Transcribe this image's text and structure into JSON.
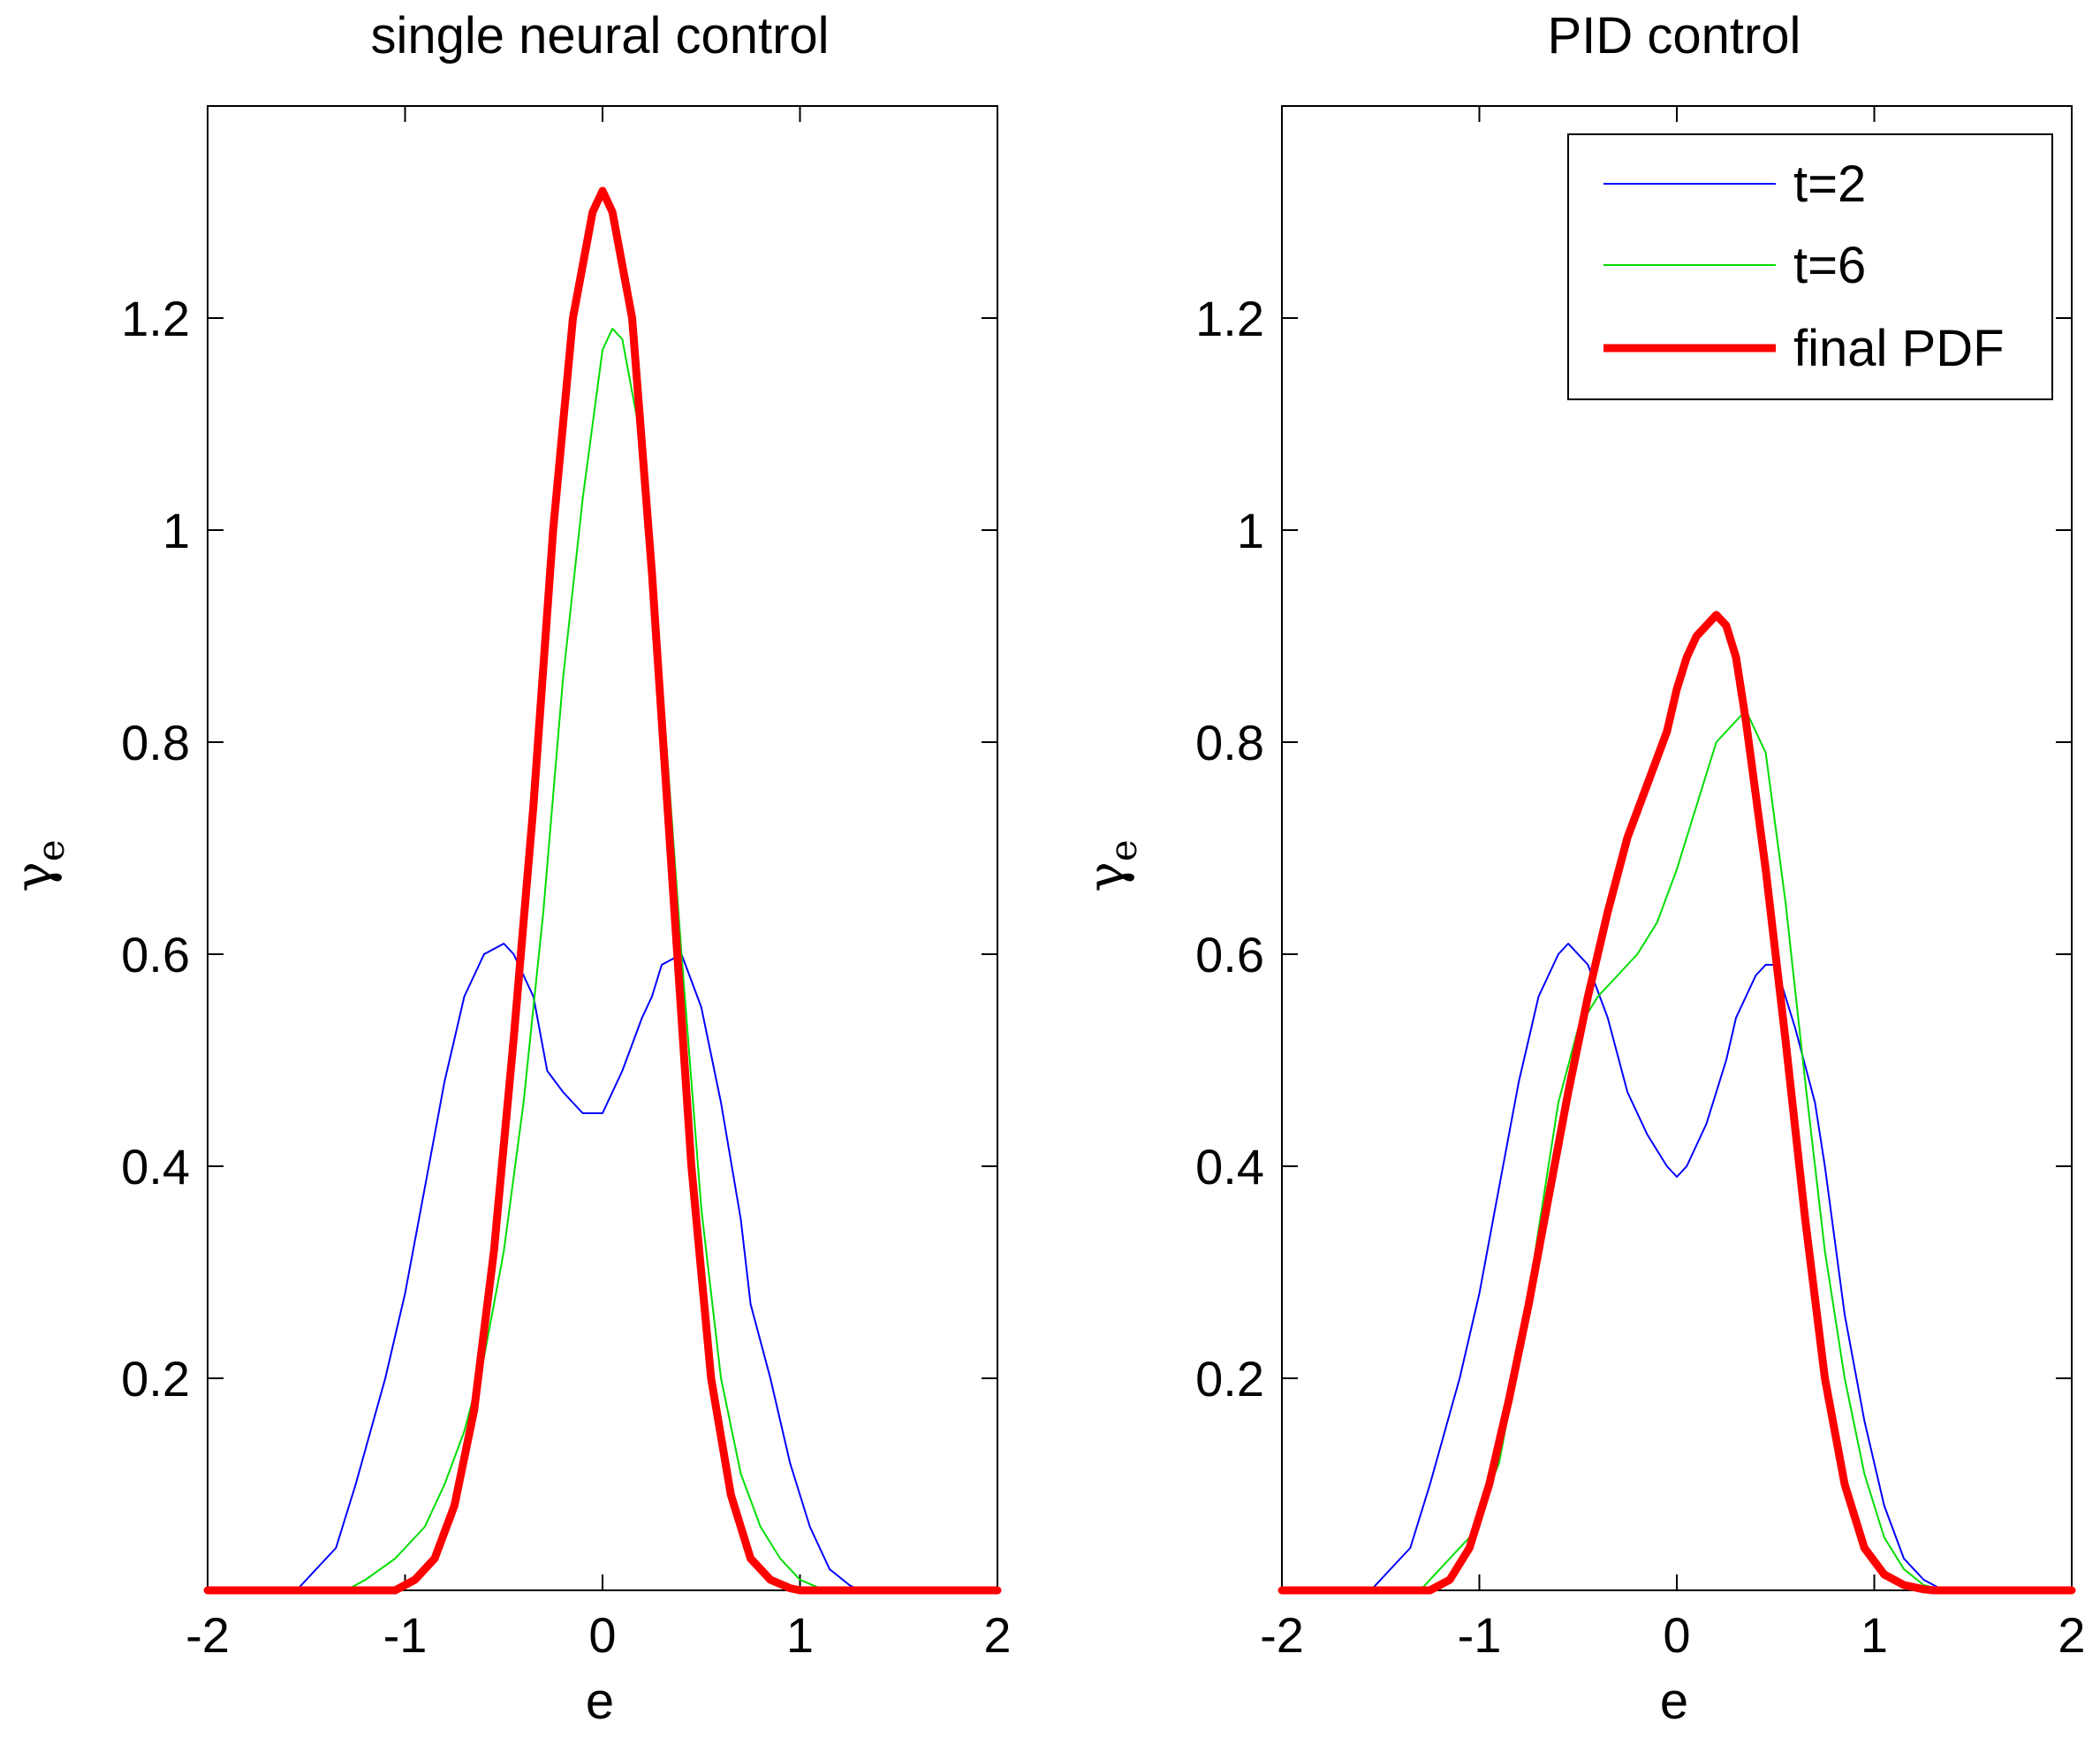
{
  "chart_data": [
    {
      "type": "line",
      "title": "single neural control",
      "xlabel": "e",
      "ylabel": "γ",
      "ylabel_sub": "e",
      "xlim": [
        -2,
        2
      ],
      "ylim": [
        0,
        1.4
      ],
      "xticks": [
        -2,
        -1,
        0,
        1,
        2
      ],
      "xtick_labels": [
        "-2",
        "-1",
        "0",
        "1",
        "2"
      ],
      "yticks": [
        0.2,
        0.4,
        0.6,
        0.8,
        1,
        1.2
      ],
      "ytick_labels": [
        "0.2",
        "0.4",
        "0.6",
        "0.8",
        "1",
        "1.2"
      ],
      "legend": null,
      "series": [
        {
          "name": "t=2",
          "color": "#0000ff",
          "width": "thin",
          "x": [
            -2,
            -1.55,
            -1.45,
            -1.35,
            -1.25,
            -1.1,
            -1.0,
            -0.9,
            -0.8,
            -0.75,
            -0.7,
            -0.6,
            -0.5,
            -0.45,
            -0.35,
            -0.28,
            -0.2,
            -0.1,
            0,
            0.1,
            0.2,
            0.25,
            0.3,
            0.4,
            0.5,
            0.6,
            0.7,
            0.75,
            0.85,
            0.95,
            1.05,
            1.15,
            1.25,
            1.3,
            2
          ],
          "y": [
            0,
            0,
            0.02,
            0.04,
            0.1,
            0.2,
            0.28,
            0.38,
            0.48,
            0.52,
            0.56,
            0.6,
            0.61,
            0.6,
            0.56,
            0.49,
            0.47,
            0.45,
            0.45,
            0.49,
            0.54,
            0.56,
            0.59,
            0.6,
            0.55,
            0.46,
            0.35,
            0.27,
            0.2,
            0.12,
            0.06,
            0.02,
            0.005,
            0,
            0
          ]
        },
        {
          "name": "t=6",
          "color": "#00dd00",
          "width": "thin",
          "x": [
            -2,
            -1.3,
            -1.2,
            -1.05,
            -0.9,
            -0.8,
            -0.7,
            -0.6,
            -0.5,
            -0.4,
            -0.3,
            -0.2,
            -0.1,
            0,
            0.05,
            0.1,
            0.2,
            0.3,
            0.4,
            0.5,
            0.6,
            0.7,
            0.8,
            0.9,
            1.0,
            1.1,
            1.2,
            2
          ],
          "y": [
            0,
            0,
            0.01,
            0.03,
            0.06,
            0.1,
            0.15,
            0.22,
            0.32,
            0.46,
            0.64,
            0.86,
            1.03,
            1.17,
            1.19,
            1.18,
            1.08,
            0.86,
            0.6,
            0.36,
            0.2,
            0.11,
            0.06,
            0.03,
            0.01,
            0.002,
            0,
            0
          ]
        },
        {
          "name": "final PDF",
          "color": "#ff0000",
          "width": "thick",
          "x": [
            -2,
            -1.05,
            -0.95,
            -0.85,
            -0.75,
            -0.65,
            -0.55,
            -0.45,
            -0.35,
            -0.25,
            -0.15,
            -0.05,
            0,
            0.05,
            0.15,
            0.25,
            0.35,
            0.45,
            0.55,
            0.65,
            0.75,
            0.85,
            0.95,
            1.0,
            2
          ],
          "y": [
            0,
            0,
            0.01,
            0.03,
            0.08,
            0.17,
            0.32,
            0.52,
            0.74,
            1.0,
            1.2,
            1.3,
            1.32,
            1.3,
            1.2,
            0.96,
            0.68,
            0.4,
            0.2,
            0.09,
            0.03,
            0.01,
            0.002,
            0,
            0
          ]
        }
      ]
    },
    {
      "type": "line",
      "title": "PID control",
      "xlabel": "e",
      "ylabel": "γ",
      "ylabel_sub": "e",
      "xlim": [
        -2,
        2
      ],
      "ylim": [
        0,
        1.4
      ],
      "xticks": [
        -2,
        -1,
        0,
        1,
        2
      ],
      "xtick_labels": [
        "-2",
        "-1",
        "0",
        "1",
        "2"
      ],
      "yticks": [
        0.2,
        0.4,
        0.6,
        0.8,
        1,
        1.2
      ],
      "ytick_labels": [
        "0.2",
        "0.4",
        "0.6",
        "0.8",
        "1",
        "1.2"
      ],
      "legend": {
        "position": "top-right",
        "entries": [
          "t=2",
          "t=6",
          "final PDF"
        ]
      },
      "series": [
        {
          "name": "t=2",
          "color": "#0000ff",
          "width": "thin",
          "x": [
            -2,
            -1.55,
            -1.45,
            -1.35,
            -1.25,
            -1.1,
            -1.0,
            -0.9,
            -0.8,
            -0.75,
            -0.7,
            -0.6,
            -0.55,
            -0.45,
            -0.35,
            -0.25,
            -0.15,
            -0.05,
            0,
            0.05,
            0.15,
            0.25,
            0.3,
            0.4,
            0.45,
            0.5,
            0.6,
            0.7,
            0.75,
            0.85,
            0.95,
            1.05,
            1.15,
            1.25,
            1.35,
            2
          ],
          "y": [
            0,
            0,
            0.02,
            0.04,
            0.1,
            0.2,
            0.28,
            0.38,
            0.48,
            0.52,
            0.56,
            0.6,
            0.61,
            0.59,
            0.54,
            0.47,
            0.43,
            0.4,
            0.39,
            0.4,
            0.44,
            0.5,
            0.54,
            0.58,
            0.59,
            0.59,
            0.53,
            0.46,
            0.4,
            0.26,
            0.16,
            0.08,
            0.03,
            0.01,
            0,
            0
          ]
        },
        {
          "name": "t=6",
          "color": "#00dd00",
          "width": "thin",
          "x": [
            -2,
            -1.3,
            -1.2,
            -1.05,
            -0.9,
            -0.8,
            -0.7,
            -0.6,
            -0.5,
            -0.4,
            -0.3,
            -0.2,
            -0.1,
            0,
            0.1,
            0.2,
            0.3,
            0.35,
            0.45,
            0.55,
            0.65,
            0.75,
            0.85,
            0.95,
            1.05,
            1.15,
            1.25,
            1.35,
            2
          ],
          "y": [
            0,
            0,
            0.02,
            0.05,
            0.12,
            0.22,
            0.34,
            0.46,
            0.53,
            0.56,
            0.58,
            0.6,
            0.63,
            0.68,
            0.74,
            0.8,
            0.82,
            0.83,
            0.79,
            0.65,
            0.48,
            0.32,
            0.2,
            0.11,
            0.05,
            0.02,
            0.005,
            0,
            0
          ]
        },
        {
          "name": "final PDF",
          "color": "#ff0000",
          "width": "thick",
          "x": [
            -2,
            -1.25,
            -1.15,
            -1.05,
            -0.95,
            -0.85,
            -0.75,
            -0.65,
            -0.55,
            -0.45,
            -0.35,
            -0.25,
            -0.15,
            -0.05,
            0,
            0.05,
            0.1,
            0.2,
            0.25,
            0.3,
            0.35,
            0.45,
            0.55,
            0.65,
            0.75,
            0.85,
            0.95,
            1.05,
            1.15,
            1.25,
            1.3,
            2
          ],
          "y": [
            0,
            0,
            0.01,
            0.04,
            0.1,
            0.18,
            0.27,
            0.37,
            0.47,
            0.56,
            0.64,
            0.71,
            0.76,
            0.81,
            0.85,
            0.88,
            0.9,
            0.92,
            0.91,
            0.88,
            0.82,
            0.68,
            0.52,
            0.35,
            0.2,
            0.1,
            0.04,
            0.015,
            0.005,
            0.001,
            0,
            0
          ]
        }
      ]
    }
  ]
}
